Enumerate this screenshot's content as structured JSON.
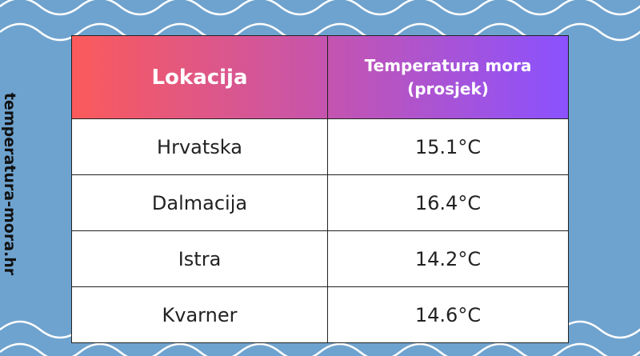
{
  "side_text": "temperatura-mora.hr",
  "table": {
    "header": [
      "Lokacija",
      "Temperatura mora (prosjek)"
    ],
    "rows": [
      [
        "Hrvatska",
        "15.1°C"
      ],
      [
        "Dalmacija",
        "16.4°C"
      ],
      [
        "Istra",
        "14.2°C"
      ],
      [
        "Kvarner",
        "14.6°C"
      ]
    ]
  }
}
